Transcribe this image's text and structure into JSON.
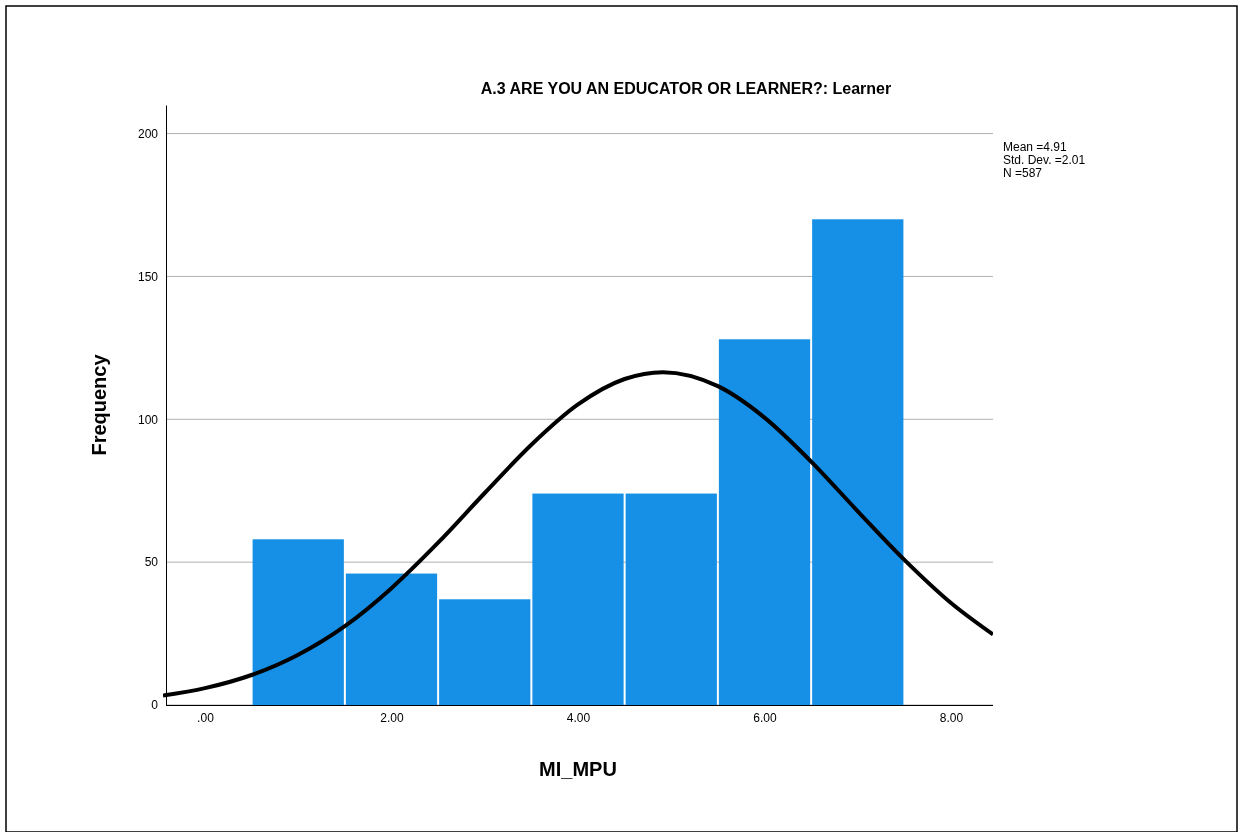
{
  "chart_data": {
    "type": "histogram",
    "title": "A.3 ARE YOU AN EDUCATOR OR LEARNER?: Learner",
    "xlabel": "MI_MPU",
    "ylabel": "Frequency",
    "bins": [
      0.5,
      1.5,
      2.5,
      3.5,
      4.5,
      5.5,
      6.5,
      7.5
    ],
    "series": [
      {
        "color": "#1590e6",
        "values": [
          58,
          46,
          37,
          74,
          74,
          128,
          170
        ]
      },
      {
        "type": "line",
        "color": "#000000",
        "x": [
          -0.45,
          0,
          0.5,
          1,
          1.5,
          2,
          2.5,
          3,
          3.5,
          4,
          4.5,
          4.91,
          5.5,
          6,
          6.5,
          7,
          7.5,
          8,
          8.45
        ],
        "values": [
          3.3,
          5.9,
          10.5,
          17.6,
          27.6,
          40.9,
          56.8,
          74.2,
          91.1,
          105.2,
          114.1,
          116.5,
          111.6,
          100.6,
          85.2,
          67.8,
          50.8,
          35.7,
          24.7
        ]
      }
    ],
    "xlim": [
      -0.45,
      8.45
    ],
    "xticks": [
      {
        "value": 0,
        "label": ".00"
      },
      {
        "value": 2,
        "label": "2.00"
      },
      {
        "value": 4,
        "label": "4.00"
      },
      {
        "value": 6,
        "label": "6.00"
      },
      {
        "value": 8,
        "label": "8.00"
      }
    ],
    "ylim": [
      0,
      210
    ],
    "yticks": [
      0,
      50,
      100,
      150,
      200
    ],
    "grid": "y",
    "marker": "none",
    "line_style": "solid",
    "annotations": [
      "Mean =4.91",
      "Std. Dev. =2.01",
      "N =587"
    ]
  }
}
